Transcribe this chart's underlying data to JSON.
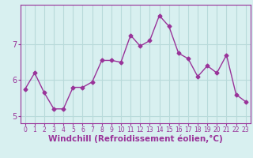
{
  "x": [
    0,
    1,
    2,
    3,
    4,
    5,
    6,
    7,
    8,
    9,
    10,
    11,
    12,
    13,
    14,
    15,
    16,
    17,
    18,
    19,
    20,
    21,
    22,
    23
  ],
  "y": [
    5.75,
    6.2,
    5.65,
    5.2,
    5.2,
    5.8,
    5.8,
    5.95,
    6.55,
    6.55,
    6.5,
    7.25,
    6.95,
    7.1,
    7.8,
    7.5,
    6.75,
    6.6,
    6.1,
    6.4,
    6.2,
    6.7,
    5.6,
    5.4
  ],
  "xlabel": "Windchill (Refroidissement éolien,°C)",
  "ylim": [
    4.8,
    8.1
  ],
  "yticks": [
    5,
    6,
    7
  ],
  "xticks": [
    0,
    1,
    2,
    3,
    4,
    5,
    6,
    7,
    8,
    9,
    10,
    11,
    12,
    13,
    14,
    15,
    16,
    17,
    18,
    19,
    20,
    21,
    22,
    23
  ],
  "line_color": "#993399",
  "marker": "D",
  "marker_size": 2.5,
  "bg_color": "#d8f0f0",
  "grid_color": "#b8dada",
  "axis_label_color": "#993399",
  "tick_color": "#993399",
  "xlabel_fontsize": 7.5,
  "tick_fontsize_x": 5.5,
  "tick_fontsize_y": 7,
  "xlim": [
    -0.5,
    23.5
  ]
}
